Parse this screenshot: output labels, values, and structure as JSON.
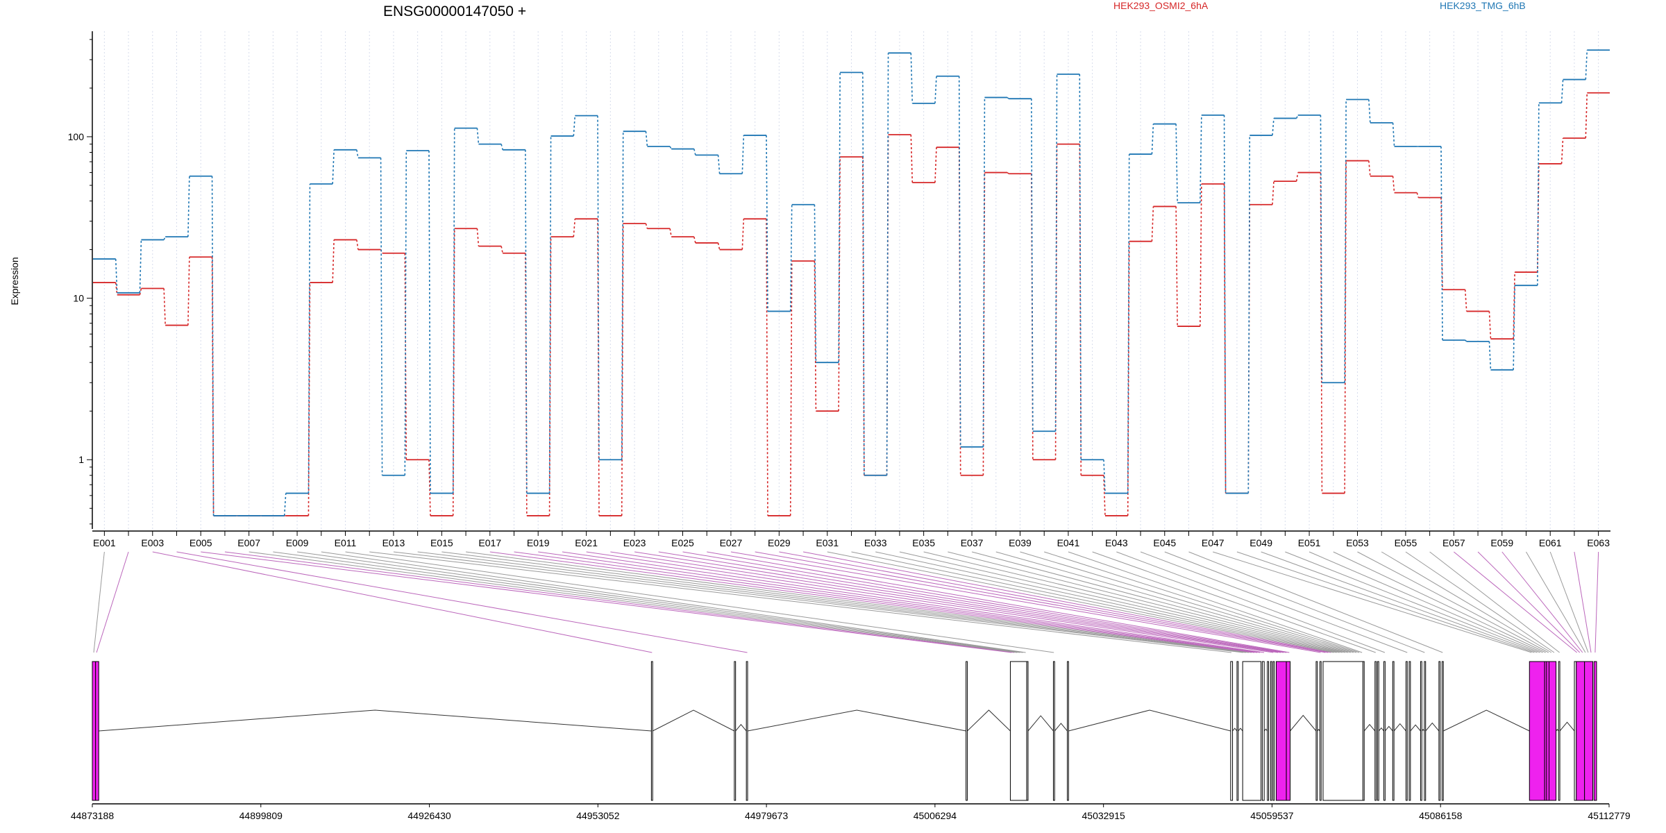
{
  "chart_data": {
    "type": "line",
    "title": "ENSG00000147050 +",
    "ylabel": "Expression",
    "yscale": "log",
    "ylim": [
      0.38,
      450
    ],
    "yticks": [
      "1",
      "10",
      "100"
    ],
    "grid": "vertical dotted lines at each exon",
    "legend_placement": "top",
    "categories": [
      "E001",
      "E002",
      "E003",
      "E004",
      "E005",
      "E006",
      "E007",
      "E008",
      "E009",
      "E010",
      "E011",
      "E012",
      "E013",
      "E014",
      "E015",
      "E016",
      "E017",
      "E018",
      "E019",
      "E020",
      "E021",
      "E022",
      "E023",
      "E024",
      "E025",
      "E026",
      "E027",
      "E028",
      "E029",
      "E030",
      "E031",
      "E032",
      "E033",
      "E034",
      "E035",
      "E036",
      "E037",
      "E038",
      "E039",
      "E040",
      "E041",
      "E042",
      "E043",
      "E044",
      "E045",
      "E046",
      "E047",
      "E048",
      "E049",
      "E050",
      "E051",
      "E052",
      "E053",
      "E054",
      "E055",
      "E056",
      "E057",
      "E058",
      "E059",
      "E060",
      "E061",
      "E062",
      "E063"
    ],
    "series": [
      {
        "name": "HEK293_OSMI2_6hA",
        "color": "#d62728",
        "values": [
          12.5,
          10.5,
          11.5,
          6.8,
          18,
          0.45,
          0.45,
          0.45,
          0.45,
          12.5,
          23,
          20,
          19,
          1.0,
          0.45,
          27,
          21,
          19,
          0.45,
          24,
          31,
          0.45,
          29,
          27,
          24,
          22,
          20,
          31,
          0.45,
          17,
          2.0,
          75,
          0.8,
          103,
          52,
          86,
          0.8,
          60,
          59,
          1.0,
          90,
          0.8,
          0.45,
          22.5,
          37,
          6.7,
          51,
          0.62,
          38,
          53,
          60,
          0.62,
          71,
          57,
          45,
          42,
          11.3,
          8.3,
          5.6,
          14.5,
          68,
          98,
          187
        ]
      },
      {
        "name": "HEK293_TMG_6hB",
        "color": "#1f77b4",
        "values": [
          17.5,
          10.8,
          23,
          24,
          57,
          0.45,
          0.45,
          0.45,
          0.62,
          51,
          83,
          74,
          0.8,
          82,
          0.62,
          113,
          90,
          83,
          0.62,
          101,
          135,
          1.0,
          108,
          87,
          84,
          77,
          59,
          102,
          8.3,
          38,
          4.0,
          250,
          0.8,
          330,
          161,
          237,
          1.2,
          175,
          172,
          1.5,
          244,
          1.0,
          0.62,
          78,
          120,
          39,
          136,
          0.62,
          102,
          130,
          136,
          3.0,
          170,
          122,
          87,
          87,
          5.5,
          5.4,
          3.6,
          12,
          162,
          226,
          344
        ]
      }
    ],
    "x_axis_ticks": [
      "E001",
      "E003",
      "E005",
      "E007",
      "E009",
      "E011",
      "E013",
      "E015",
      "E017",
      "E019",
      "E021",
      "E023",
      "E025",
      "E027",
      "E029",
      "E031",
      "E033",
      "E035",
      "E037",
      "E039",
      "E041",
      "E043",
      "E045",
      "E047",
      "E049",
      "E051",
      "E053",
      "E055",
      "E057",
      "E059",
      "E061",
      "E063"
    ],
    "genomic_coordinates": [
      "44873188",
      "44899809",
      "44926430",
      "44953052",
      "44979673",
      "45006294",
      "45032915",
      "45059537",
      "45086158",
      "45112779"
    ],
    "genomic_range": [
      44873188,
      45112779
    ],
    "exon_highlight_color": "#ee22ee",
    "connector_colors": {
      "normal": "#999999",
      "highlighted": "#bb66bb"
    },
    "gene_model": {
      "exon_bounds": [
        [
          44873188,
          44873700
        ],
        [
          44873700,
          44874200
        ],
        [
          44961500,
          44961700
        ],
        [
          44974600,
          44974800
        ],
        [
          44976500,
          44976700
        ],
        [
          45011200,
          45011400
        ],
        [
          45018200,
          45020800
        ],
        [
          45020800,
          45021000
        ],
        [
          45025000,
          45025200
        ],
        [
          45027200,
          45027400
        ],
        [
          45053000,
          45053300
        ],
        [
          45054000,
          45054200
        ],
        [
          45054900,
          45057800
        ],
        [
          45058000,
          45058300
        ],
        [
          45058800,
          45059000
        ],
        [
          45059300,
          45059500
        ],
        [
          45059700,
          45059900
        ],
        [
          45060200,
          45061800
        ],
        [
          45061800,
          45062400
        ],
        [
          45066500,
          45066700
        ],
        [
          45067100,
          45067300
        ],
        [
          45067600,
          45073900
        ],
        [
          45073900,
          45074100
        ],
        [
          45075800,
          45076000
        ],
        [
          45076200,
          45076400
        ],
        [
          45077200,
          45077400
        ],
        [
          45078600,
          45078800
        ],
        [
          45080700,
          45080900
        ],
        [
          45081200,
          45081400
        ],
        [
          45083000,
          45083200
        ],
        [
          45083600,
          45083800
        ],
        [
          45085900,
          45086100
        ],
        [
          45086400,
          45086600
        ],
        [
          45100200,
          45102600
        ],
        [
          45102600,
          45102900
        ],
        [
          45102900,
          45103300
        ],
        [
          45103300,
          45104400
        ],
        [
          45104800,
          45105000
        ],
        [
          45107300,
          45107600
        ],
        [
          45107600,
          45108900
        ],
        [
          45108900,
          45110200
        ],
        [
          45110400,
          45110800
        ]
      ],
      "highlighted_exons": [
        0,
        1,
        17,
        18,
        33,
        34,
        35,
        36,
        39,
        40,
        41
      ],
      "highlighted_connectors": [
        1,
        2,
        3,
        4,
        5,
        16,
        17,
        18,
        19,
        20,
        21,
        22,
        23,
        24,
        25,
        26,
        27,
        28,
        29,
        56,
        57,
        58,
        61,
        62
      ]
    }
  }
}
